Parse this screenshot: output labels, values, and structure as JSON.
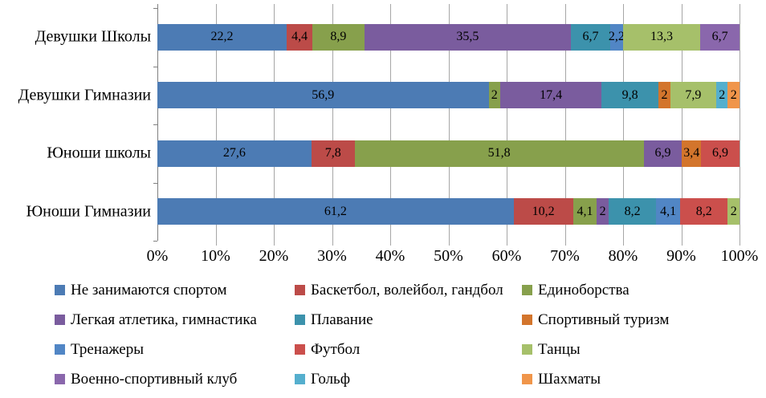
{
  "chart_data": {
    "type": "bar",
    "subtype": "stacked-100-horizontal",
    "title": "",
    "xlabel": "",
    "ylabel": "",
    "xlim": [
      0,
      100
    ],
    "grid": true,
    "legend_position": "bottom",
    "label_decimal_separator": ",",
    "colors": {
      "background": "#FFFFFF",
      "gridline": "#A6A6A6",
      "axis": "#808080",
      "text": "#000000"
    },
    "categories": [
      "Девушки Школы",
      "Девушки Гимназии",
      "Юноши школы",
      "Юноши Гимназии"
    ],
    "x_ticks": [
      "0%",
      "10%",
      "20%",
      "30%",
      "40%",
      "50%",
      "60%",
      "70%",
      "80%",
      "90%",
      "100%"
    ],
    "series": [
      {
        "name": "Не занимаются спортом",
        "color": "#4C7BB4",
        "values": [
          22.2,
          56.9,
          27.6,
          61.2
        ]
      },
      {
        "name": "Баскетбол, волейбол, гандбол",
        "color": "#BC4B48",
        "values": [
          4.4,
          0,
          7.8,
          10.2
        ]
      },
      {
        "name": "Единоборства",
        "color": "#87A04C",
        "values": [
          8.9,
          2,
          51.8,
          4.1
        ]
      },
      {
        "name": "Легкая атлетика, гимнастика",
        "color": "#7A5C9E",
        "values": [
          35.5,
          17.4,
          6.9,
          2
        ]
      },
      {
        "name": "Плавание",
        "color": "#3C92AC",
        "values": [
          6.7,
          9.8,
          0,
          8.2
        ]
      },
      {
        "name": "Спортивный туризм",
        "color": "#D3752C",
        "values": [
          0,
          2,
          3.4,
          0
        ]
      },
      {
        "name": "Тренажеры",
        "color": "#5186C5",
        "values": [
          2.2,
          0,
          0,
          4.1
        ]
      },
      {
        "name": "Футбол",
        "color": "#CB4F4C",
        "values": [
          0,
          0,
          6.9,
          8.2
        ]
      },
      {
        "name": "Танцы",
        "color": "#A6C06A",
        "values": [
          13.3,
          7.9,
          0,
          2
        ]
      },
      {
        "name": "Военно-спортивный клуб",
        "color": "#8A67AC",
        "values": [
          6.7,
          0,
          0,
          0
        ]
      },
      {
        "name": "Гольф",
        "color": "#55AFCE",
        "values": [
          0,
          2,
          0,
          0
        ]
      },
      {
        "name": "Шахматы",
        "color": "#F0954A",
        "values": [
          0,
          2,
          0,
          0
        ]
      }
    ]
  }
}
